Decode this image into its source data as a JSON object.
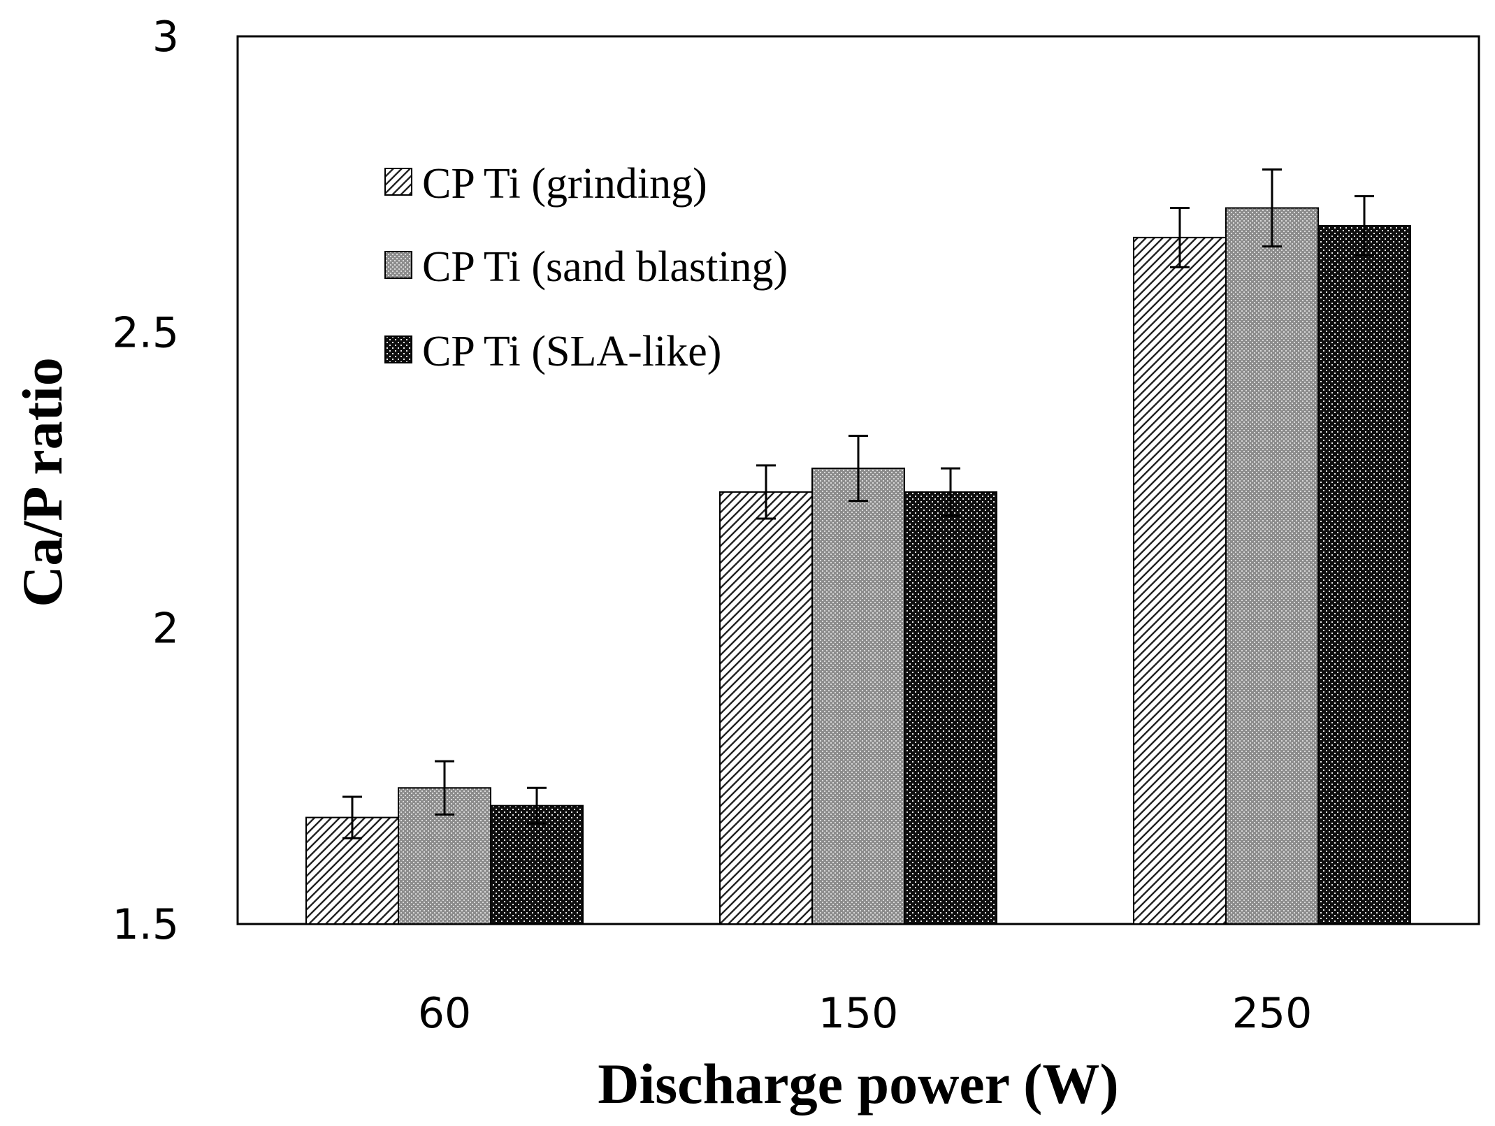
{
  "chart_data": {
    "type": "bar",
    "xlabel": "Discharge power (W)",
    "ylabel": "Ca/P ratio",
    "categories": [
      "60",
      "150",
      "250"
    ],
    "ylim": [
      1.5,
      3
    ],
    "yticks": [
      "1.5",
      "2",
      "2.5",
      "3"
    ],
    "grid": false,
    "legend_position": "top-left",
    "series": [
      {
        "name": "CP Ti (grinding)",
        "pattern": "diagonal-hatch",
        "values": [
          1.68,
          2.23,
          2.66
        ],
        "errors": [
          0.035,
          0.045,
          0.05
        ]
      },
      {
        "name": "CP Ti (sand blasting)",
        "pattern": "fine-grey-dots",
        "values": [
          1.73,
          2.27,
          2.71
        ],
        "errors": [
          0.045,
          0.055,
          0.065
        ]
      },
      {
        "name": "CP Ti (SLA-like)",
        "pattern": "dense-black-dots",
        "values": [
          1.7,
          2.23,
          2.68
        ],
        "errors": [
          0.03,
          0.04,
          0.05
        ]
      }
    ]
  }
}
